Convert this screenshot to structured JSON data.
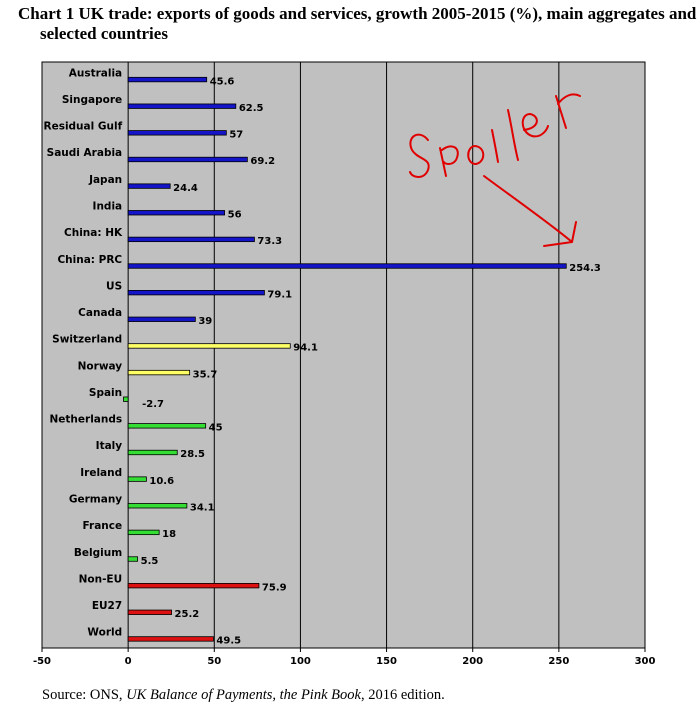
{
  "title": "Chart 1 UK trade: exports of goods and services, growth 2005-2015 (%), main aggregates and selected countries",
  "source": {
    "prefix": "Source: ONS, ",
    "publication": "UK Balance of Payments, the Pink Book",
    "suffix": ", 2016 edition."
  },
  "annotation": {
    "text": "Spoiler",
    "color": "#e00000"
  },
  "colors": {
    "plot_background": "#c0c0c0",
    "grid": "#000000",
    "blue": "#1414c8",
    "yellow": "#ffff66",
    "green": "#33dd33",
    "red": "#dd1111"
  },
  "chart_data": {
    "type": "bar",
    "orientation": "horizontal",
    "title": "Chart 1 UK trade: exports of goods and services, growth 2005-2015 (%), main aggregates and selected countries",
    "xlabel": "",
    "ylabel": "",
    "xlim": [
      -50,
      300
    ],
    "xticks": [
      -50,
      0,
      50,
      100,
      150,
      200,
      250,
      300
    ],
    "grid": "vertical",
    "categories": [
      "Australia",
      "Singapore",
      "Residual Gulf",
      "Saudi Arabia",
      "Japan",
      "India",
      "China: HK",
      "China: PRC",
      "US",
      "Canada",
      "Switzerland",
      "Norway",
      "Spain",
      "Netherlands",
      "Italy",
      "Ireland",
      "Germany",
      "France",
      "Belgium",
      "Non-EU",
      "EU27",
      "World"
    ],
    "values": [
      45.6,
      62.5,
      57,
      69.2,
      24.4,
      56,
      73.3,
      254.3,
      79.1,
      39,
      94.1,
      35.7,
      -2.7,
      45,
      28.5,
      10.6,
      34.1,
      18,
      5.5,
      75.9,
      25.2,
      49.5
    ],
    "value_labels": [
      "45.6",
      "62.5",
      "57",
      "69.2",
      "24.4",
      "56",
      "73.3",
      "254.3",
      "79.1",
      "39",
      "94.1",
      "35.7",
      "-2.7",
      "45",
      "28.5",
      "10.6",
      "34.1",
      "18",
      "5.5",
      "75.9",
      "25.2",
      "49.5"
    ],
    "bar_colors": [
      "blue",
      "blue",
      "blue",
      "blue",
      "blue",
      "blue",
      "blue",
      "blue",
      "blue",
      "blue",
      "yellow",
      "yellow",
      "green",
      "green",
      "green",
      "green",
      "green",
      "green",
      "green",
      "red",
      "red",
      "red"
    ]
  }
}
